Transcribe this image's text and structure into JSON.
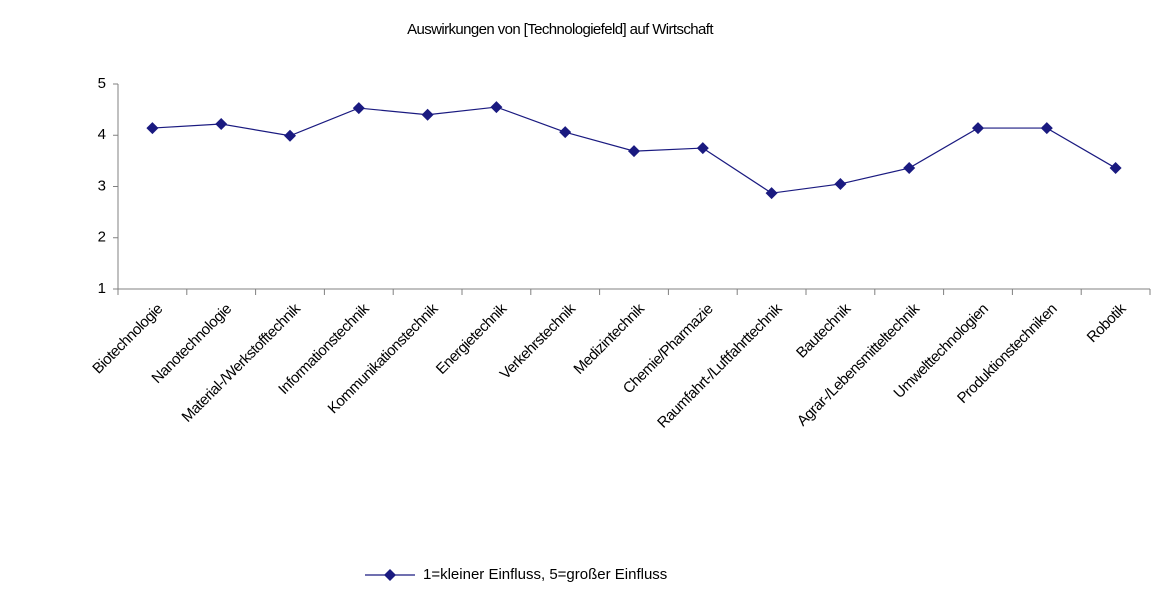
{
  "chart_data": {
    "type": "line",
    "title": "Auswirkungen von [Technologiefeld] auf Wirtschaft",
    "categories": [
      "Biotechnologie",
      "Nanotechnologie",
      "Material-/Werkstofftechnik",
      "Informationstechnik",
      "Kommunikationstechnik",
      "Energietechnik",
      "Verkehrstechnik",
      "Medizintechnik",
      "Chemie/Pharmazie",
      "Raumfahrt-/Luftfahrttechnik",
      "Bautechnik",
      "Agrar-/Lebensmitteltechnik",
      "Umwelttechnologien",
      "Produktionstechniken",
      "Robotik"
    ],
    "series": [
      {
        "name": "1=kleiner Einfluss, 5=großer Einfluss",
        "color": "#1a1a80",
        "values": [
          4.14,
          4.22,
          3.99,
          4.53,
          4.4,
          4.55,
          4.06,
          3.69,
          3.75,
          2.87,
          3.05,
          3.36,
          4.14,
          4.14,
          3.36
        ]
      }
    ],
    "ylim": [
      1,
      5
    ],
    "yticks": [
      1,
      2,
      3,
      4,
      5
    ],
    "grid": false,
    "legend": "bottom"
  }
}
